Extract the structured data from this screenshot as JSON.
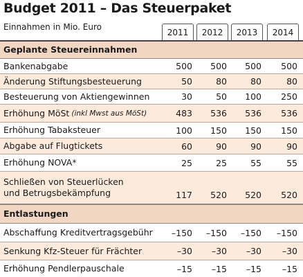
{
  "title": "Budget 2011 – Das Steuerpaket",
  "subtitle": "Einnahmen in Mio. Euro",
  "years": [
    "2011",
    "2012",
    "2013",
    "2014"
  ],
  "sections": [
    {
      "header": "Geplante Steuereinnahmen",
      "rows": [
        {
          "label": "Bankenabgabe",
          "values": [
            "500",
            "500",
            "500",
            "500"
          ]
        },
        {
          "label": "Änderung Stiftungsbesteuerung",
          "values": [
            "50",
            "80",
            "80",
            "80"
          ]
        },
        {
          "label": "Besteuerung von Aktiengewinnen",
          "values": [
            "30",
            "50",
            "100",
            "250"
          ]
        },
        {
          "label": "Erhöhung MöSt",
          "note": "(inkl Mwst aus MöSt)",
          "values": [
            "483",
            "536",
            "536",
            "536"
          ]
        },
        {
          "label": "Erhöhung Tabaksteuer",
          "values": [
            "100",
            "150",
            "150",
            "150"
          ]
        },
        {
          "label": "Abgabe auf Flugtickets",
          "values": [
            "60",
            "90",
            "90",
            "90"
          ]
        },
        {
          "label": "Erhöhung NOVA*",
          "values": [
            "25",
            "25",
            "55",
            "55"
          ]
        },
        {
          "label": "Schließen von Steuerlücken",
          "label2": "und Betrugsbekämpfung",
          "values": [
            "117",
            "520",
            "520",
            "520"
          ]
        }
      ]
    },
    {
      "header": "Entlastungen",
      "rows": [
        {
          "label": "Abschaffung Kreditvertragsgebühr",
          "values": [
            "–150",
            "–150",
            "–150",
            "–150"
          ]
        },
        {
          "label": "Senkung Kfz-Steuer für Frächter",
          "values": [
            "–30",
            "–30",
            "–30",
            "–30"
          ]
        },
        {
          "label": "Erhöhung Pendlerpauschale",
          "values": [
            "–15",
            "–15",
            "–15",
            "–15"
          ]
        }
      ]
    }
  ]
}
